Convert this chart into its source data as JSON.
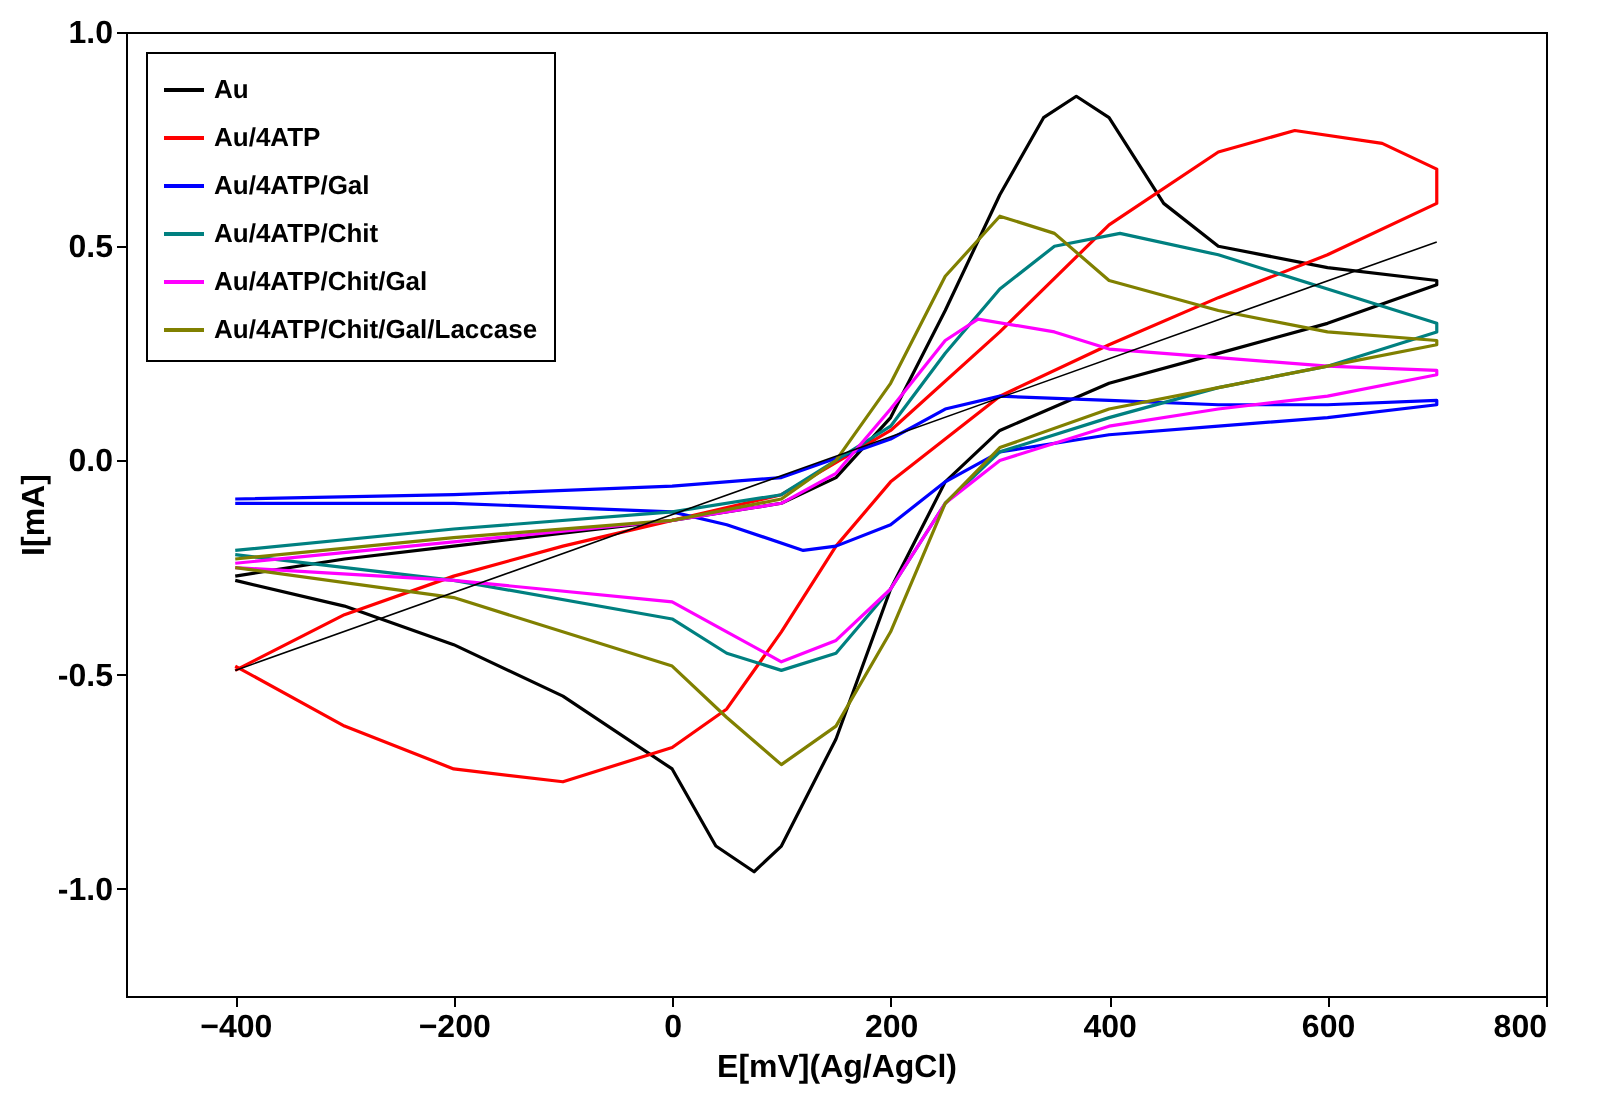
{
  "chart_data": {
    "type": "line",
    "xlabel": "E[mV](Ag/AgCl)",
    "ylabel": "I[mA]",
    "xlim": [
      -500,
      800
    ],
    "ylim": [
      -1.25,
      1.0
    ],
    "xticks": [
      -400,
      -200,
      0,
      200,
      400,
      600,
      800
    ],
    "yticks": [
      {
        "value": -1.0,
        "label": "-1.0"
      },
      {
        "value": -0.5,
        "label": "-0.5"
      },
      {
        "value": 0,
        "label": "0.0"
      },
      {
        "value": 0.5,
        "label": "0.5"
      },
      {
        "value": 1.0,
        "label": "1.0"
      }
    ],
    "grid": false,
    "legend": "top left",
    "series": [
      {
        "name": "Au",
        "color": "#000000",
        "x": [
          -400,
          -300,
          -200,
          -100,
          0,
          100,
          150,
          200,
          250,
          300,
          340,
          370,
          400,
          450,
          500,
          600,
          700,
          700,
          600,
          500,
          400,
          300,
          250,
          200,
          150,
          100,
          75,
          40,
          0,
          -100,
          -200,
          -300,
          -400
        ],
        "values": [
          -0.27,
          -0.23,
          -0.2,
          -0.17,
          -0.14,
          -0.1,
          -0.04,
          0.1,
          0.35,
          0.62,
          0.8,
          0.85,
          0.8,
          0.6,
          0.5,
          0.45,
          0.42,
          0.41,
          0.32,
          0.25,
          0.18,
          0.07,
          -0.05,
          -0.3,
          -0.65,
          -0.9,
          -0.96,
          -0.9,
          -0.72,
          -0.55,
          -0.43,
          -0.34,
          -0.28
        ]
      },
      {
        "name": "Au/4ATP",
        "color": "#ff0000",
        "x": [
          -400,
          -300,
          -200,
          -100,
          0,
          100,
          200,
          300,
          400,
          500,
          570,
          650,
          700,
          700,
          600,
          500,
          400,
          300,
          250,
          200,
          150,
          100,
          50,
          0,
          -100,
          -200,
          -300,
          -400
        ],
        "values": [
          -0.49,
          -0.36,
          -0.27,
          -0.2,
          -0.14,
          -0.08,
          0.07,
          0.3,
          0.55,
          0.72,
          0.77,
          0.74,
          0.68,
          0.6,
          0.48,
          0.38,
          0.27,
          0.15,
          0.05,
          -0.05,
          -0.2,
          -0.4,
          -0.58,
          -0.67,
          -0.75,
          -0.72,
          -0.62,
          -0.48
        ]
      },
      {
        "name": "Au/4ATP/Gal",
        "color": "#0000ff",
        "x": [
          -400,
          -200,
          0,
          100,
          200,
          250,
          300,
          400,
          500,
          600,
          700,
          700,
          600,
          500,
          400,
          300,
          250,
          200,
          150,
          120,
          50,
          0,
          -200,
          -400
        ],
        "values": [
          -0.09,
          -0.08,
          -0.06,
          -0.04,
          0.05,
          0.12,
          0.15,
          0.14,
          0.13,
          0.13,
          0.14,
          0.13,
          0.1,
          0.08,
          0.06,
          0.02,
          -0.05,
          -0.15,
          -0.2,
          -0.21,
          -0.15,
          -0.12,
          -0.1,
          -0.1
        ]
      },
      {
        "name": "Au/4ATP/Chit",
        "color": "#008080",
        "x": [
          -400,
          -200,
          0,
          100,
          200,
          250,
          300,
          350,
          410,
          500,
          600,
          700,
          700,
          600,
          500,
          400,
          300,
          250,
          200,
          150,
          100,
          50,
          0,
          -200,
          -400
        ],
        "values": [
          -0.21,
          -0.16,
          -0.12,
          -0.08,
          0.08,
          0.25,
          0.4,
          0.5,
          0.53,
          0.48,
          0.4,
          0.32,
          0.3,
          0.22,
          0.17,
          0.1,
          0.02,
          -0.1,
          -0.3,
          -0.45,
          -0.49,
          -0.45,
          -0.37,
          -0.28,
          -0.22
        ]
      },
      {
        "name": "Au/4ATP/Chit/Gal",
        "color": "#ff00ff",
        "x": [
          -400,
          -200,
          0,
          100,
          150,
          200,
          250,
          280,
          350,
          400,
          500,
          600,
          700,
          700,
          600,
          500,
          400,
          300,
          250,
          200,
          150,
          100,
          50,
          0,
          -200,
          -400
        ],
        "values": [
          -0.24,
          -0.19,
          -0.14,
          -0.1,
          -0.03,
          0.12,
          0.28,
          0.33,
          0.3,
          0.26,
          0.24,
          0.22,
          0.21,
          0.2,
          0.15,
          0.12,
          0.08,
          0.0,
          -0.1,
          -0.3,
          -0.42,
          -0.47,
          -0.4,
          -0.33,
          -0.28,
          -0.25
        ]
      },
      {
        "name": "Au/4ATP/Chit/Gal/Laccase",
        "color": "#808000",
        "x": [
          -400,
          -200,
          0,
          100,
          150,
          200,
          250,
          300,
          350,
          400,
          500,
          600,
          700,
          700,
          600,
          500,
          400,
          300,
          250,
          200,
          150,
          100,
          50,
          0,
          -200,
          -400
        ],
        "values": [
          -0.23,
          -0.18,
          -0.14,
          -0.09,
          0,
          0.18,
          0.43,
          0.57,
          0.53,
          0.42,
          0.35,
          0.3,
          0.28,
          0.27,
          0.22,
          0.17,
          0.12,
          0.03,
          -0.1,
          -0.4,
          -0.62,
          -0.71,
          -0.6,
          -0.48,
          -0.32,
          -0.25
        ]
      },
      {
        "color": "#000000",
        "x": [
          -400,
          700
        ],
        "values": [
          -0.49,
          0.51
        ]
      }
    ]
  }
}
